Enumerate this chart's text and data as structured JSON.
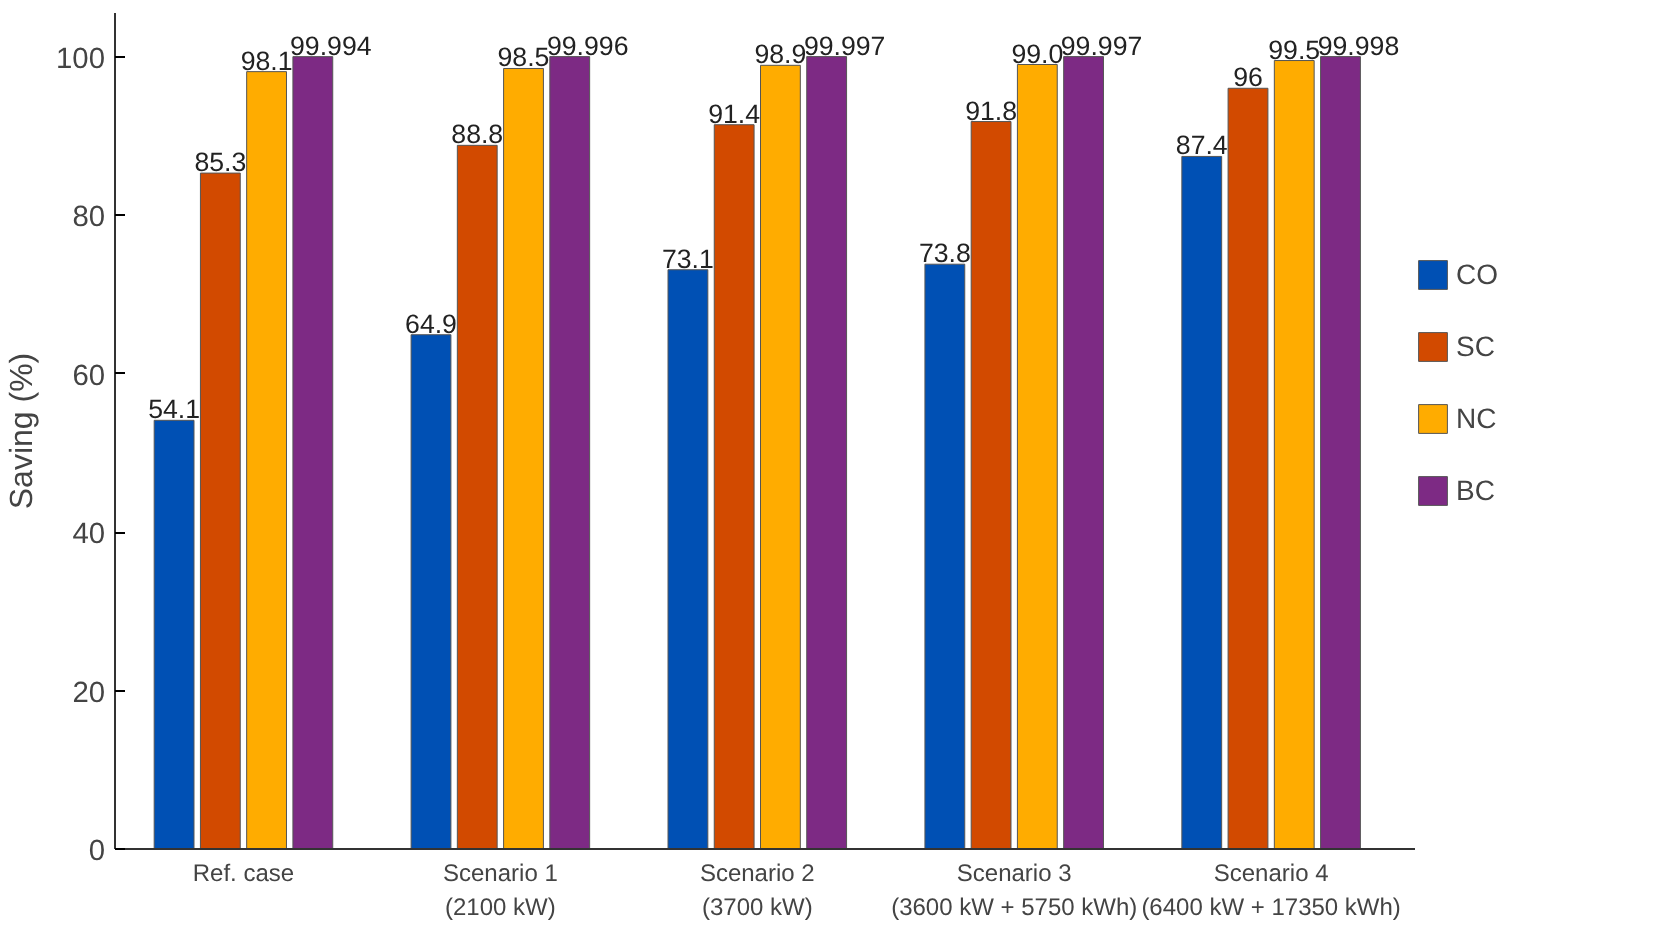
{
  "chart_data": {
    "type": "bar",
    "ylabel": "Saving (%)",
    "categories": [
      "Ref. case",
      "Scenario 1\n(2100 kW)",
      "Scenario 2\n(3700 kW)",
      "Scenario 3\n(3600 kW + 5750 kWh)",
      "Scenario 4\n(6400 kW + 17350 kWh)"
    ],
    "series": [
      {
        "name": "CO",
        "color": "#0050b4",
        "values": [
          54.1,
          64.9,
          73.1,
          73.8,
          87.4
        ],
        "value_labels": [
          "54.1",
          "64.9",
          "73.1",
          "73.8",
          "87.4"
        ]
      },
      {
        "name": "SC",
        "color": "#d24a00",
        "values": [
          85.3,
          88.8,
          91.4,
          91.8,
          96
        ],
        "value_labels": [
          "85.3",
          "88.8",
          "91.4",
          "91.8",
          "96"
        ]
      },
      {
        "name": "NC",
        "color": "#ffac00",
        "values": [
          98.1,
          98.5,
          98.9,
          99.0,
          99.5
        ],
        "value_labels": [
          "98.1",
          "98.5",
          "98.9",
          "99.0",
          "99.5"
        ]
      },
      {
        "name": "BC",
        "color": "#7d2a84",
        "values": [
          99.994,
          99.996,
          99.997,
          99.997,
          99.998
        ],
        "value_labels": [
          "99.994",
          "99.996",
          "99.997",
          "99.997",
          "99.998"
        ]
      }
    ],
    "ylim": [
      0,
      105.5
    ],
    "yticks": [
      0,
      20,
      40,
      60,
      80,
      100
    ],
    "grid": false,
    "legend": "right"
  }
}
